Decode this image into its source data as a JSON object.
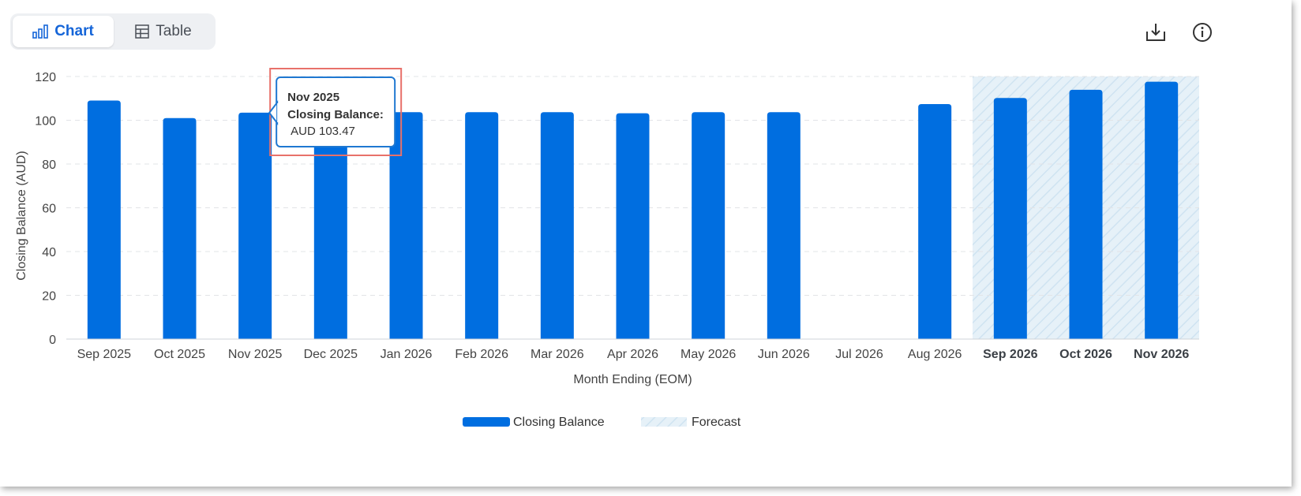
{
  "toggle": {
    "chart_label": "Chart",
    "table_label": "Table"
  },
  "icons": {
    "download": "download-icon",
    "info": "info-icon",
    "chart": "bar-chart-icon",
    "table": "table-icon"
  },
  "colors": {
    "bar": "#006ee0",
    "forecast_fill": "#e6f1f8",
    "accent": "#1565d8",
    "tooltip_border": "#1f78d1",
    "highlight": "#e8716a"
  },
  "chart_data": {
    "type": "bar",
    "categories": [
      "Sep 2025",
      "Oct 2025",
      "Nov 2025",
      "Dec 2025",
      "Jan 2026",
      "Feb 2026",
      "Mar 2026",
      "Apr 2026",
      "May 2026",
      "Jun 2026",
      "Jul 2026",
      "Aug 2026",
      "Sep 2026",
      "Oct 2026",
      "Nov 2026"
    ],
    "series": [
      {
        "name": "Closing Balance",
        "values": [
          109,
          101,
          103.47,
          103,
          103.7,
          103.7,
          103.7,
          103.2,
          103.7,
          103.7,
          null,
          107.4,
          110.2,
          113.9,
          117.6
        ]
      }
    ],
    "forecast_categories": [
      "Sep 2026",
      "Oct 2026",
      "Nov 2026"
    ],
    "xlabel": "Month Ending (EOM)",
    "ylabel": "Closing Balance (AUD)",
    "ylim": [
      0,
      120
    ],
    "yticks": [
      0,
      20,
      40,
      60,
      80,
      100,
      120
    ],
    "grid": true,
    "legend": {
      "placement": "bottom-center",
      "items": [
        "Closing Balance",
        "Forecast"
      ]
    },
    "tooltip": {
      "category": "Nov 2025",
      "title": "Nov 2025",
      "label": "Closing Balance:",
      "value": "AUD 103.47"
    }
  }
}
